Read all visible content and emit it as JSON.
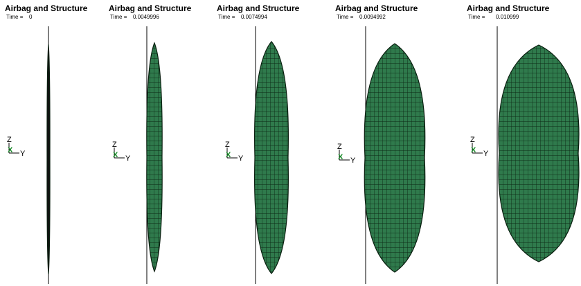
{
  "panels": [
    {
      "title": "Airbag and Structure",
      "time_label": "Time =",
      "time": "0",
      "triad": {
        "z": "Z",
        "x": "X",
        "y": "Y"
      }
    },
    {
      "title": "Airbag and Structure",
      "time_label": "Time =",
      "time": "0.0049996",
      "triad": {
        "z": "Z",
        "x": "X",
        "y": "Y"
      }
    },
    {
      "title": "Airbag and Structure",
      "time_label": "Time =",
      "time": "0.0074994",
      "triad": {
        "z": "Z",
        "x": "X",
        "y": "Y"
      }
    },
    {
      "title": "Airbag and Structure",
      "time_label": "Time =",
      "time": "0.0094992",
      "triad": {
        "z": "Z",
        "x": "X",
        "y": "Y"
      }
    },
    {
      "title": "Airbag and Structure",
      "time_label": "Time =",
      "time": "0.010999",
      "triad": {
        "z": "Z",
        "x": "X",
        "y": "Y"
      }
    }
  ]
}
